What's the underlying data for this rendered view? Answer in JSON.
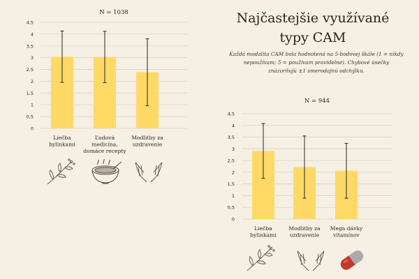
{
  "title": "Najčastejšie využívané typy CAM",
  "subtitle": "Každá modalita CAM bola hodnotená na 5-bodovej škále (1 = nikdy nepoužívam; 5 = používam pravidelne). Chybové úsečky znázorňujú ±1 smerodajnú odchýlku.",
  "colors": {
    "bar": "#ffd966",
    "grid": "#d9d2c5",
    "text": "#2a241c",
    "error": "#2a241c",
    "icon": "#5a5249",
    "pill_red": "#c0392b",
    "pill_gray": "#aaaaaa"
  },
  "chart_data": [
    {
      "type": "bar",
      "title": "N = 1038",
      "categories": [
        "Liečba bylinkami",
        "Ľudová medicína, domáce recepty",
        "Modlitby za uzdravenie"
      ],
      "category_lines": [
        [
          "Liečba",
          "bylinkami"
        ],
        [
          "Ľudová",
          "medicína,",
          "domáce recepty"
        ],
        [
          "Modlitby za",
          "uzdravenie"
        ]
      ],
      "values": [
        3.04,
        3.03,
        2.38
      ],
      "errors": [
        1.09,
        1.09,
        1.42
      ],
      "ylim": [
        0,
        4.5
      ],
      "yticks": [
        "0",
        "0,5",
        "1",
        "1,5",
        "2",
        "2,5",
        "3",
        "3,5",
        "4",
        "4,5"
      ],
      "xlabel": "",
      "ylabel": "",
      "grid": true
    },
    {
      "type": "bar",
      "title": "N = 944",
      "categories": [
        "Liečba bylinkami",
        "Modlitby za uzdravenie",
        "Mega dávky vitamínov"
      ],
      "category_lines": [
        [
          "Liečba",
          "bylinkami"
        ],
        [
          "Modlitby za",
          "uzdravenie"
        ],
        [
          "Mega dávky",
          "vitamínov"
        ]
      ],
      "values": [
        2.91,
        2.22,
        2.06
      ],
      "errors": [
        1.17,
        1.33,
        1.17
      ],
      "ylim": [
        0,
        4.5
      ],
      "yticks": [
        "0",
        "0,5",
        "1",
        "1,5",
        "2",
        "2,5",
        "3",
        "3,5",
        "4",
        "4,5"
      ],
      "xlabel": "",
      "ylabel": "",
      "grid": true
    }
  ],
  "icons": {
    "chart1": [
      "herb-branch-icon",
      "soup-bowl-icon",
      "praying-hands-icon"
    ],
    "chart2": [
      "herb-branch-icon",
      "praying-hands-icon",
      "pill-capsule-icon"
    ]
  }
}
